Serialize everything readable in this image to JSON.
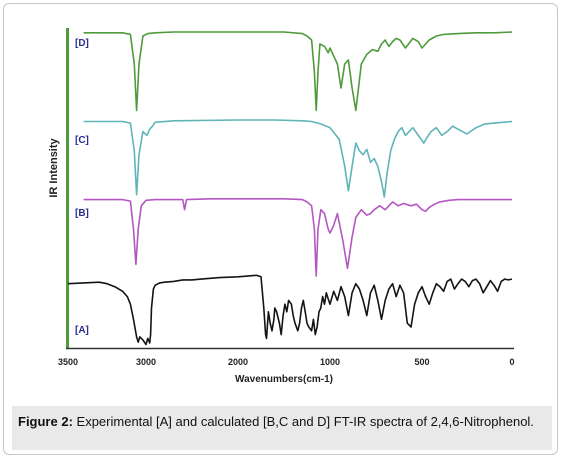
{
  "caption": {
    "label": "Figure 2:",
    "text": "Experimental [A] and calculated [B,C and D] FT-IR spectra of 2,4,6-Nitrophenol."
  },
  "chart_data": {
    "type": "line",
    "title": "",
    "xlabel": "Wavenumbers(cm-1)",
    "ylabel": "IR Intensity",
    "xlim": [
      3500,
      0
    ],
    "x_ticks": [
      3500,
      3000,
      2000,
      1000,
      500,
      0
    ],
    "tick_labels": [
      "3500",
      "3000",
      "2000",
      "1000",
      "500",
      "0"
    ],
    "grid": false,
    "series": [
      {
        "name": "[D]",
        "color": "#4f9a3c",
        "label_color": "#2b2f8f",
        "points": [
          [
            3400,
            0.99
          ],
          [
            3150,
            0.99
          ],
          [
            3100,
            0.97
          ],
          [
            3075,
            0.6
          ],
          [
            3060,
            0.02
          ],
          [
            3045,
            0.6
          ],
          [
            3020,
            0.95
          ],
          [
            2980,
            0.98
          ],
          [
            2900,
            0.99
          ],
          [
            2700,
            1.0
          ],
          [
            2000,
            1.0
          ],
          [
            1500,
            1.0
          ],
          [
            1300,
            0.98
          ],
          [
            1250,
            0.95
          ],
          [
            1200,
            0.9
          ],
          [
            1170,
            0.5
          ],
          [
            1150,
            0.02
          ],
          [
            1130,
            0.5
          ],
          [
            1110,
            0.85
          ],
          [
            1060,
            0.82
          ],
          [
            1020,
            0.74
          ],
          [
            1000,
            0.8
          ],
          [
            980,
            0.7
          ],
          [
            960,
            0.6
          ],
          [
            940,
            0.3
          ],
          [
            920,
            0.6
          ],
          [
            900,
            0.65
          ],
          [
            880,
            0.3
          ],
          [
            860,
            0.02
          ],
          [
            845,
            0.3
          ],
          [
            830,
            0.6
          ],
          [
            800,
            0.72
          ],
          [
            770,
            0.78
          ],
          [
            740,
            0.76
          ],
          [
            720,
            0.85
          ],
          [
            700,
            0.9
          ],
          [
            680,
            0.82
          ],
          [
            660,
            0.88
          ],
          [
            640,
            0.92
          ],
          [
            620,
            0.9
          ],
          [
            590,
            0.8
          ],
          [
            570,
            0.86
          ],
          [
            550,
            0.92
          ],
          [
            520,
            0.88
          ],
          [
            500,
            0.8
          ],
          [
            480,
            0.85
          ],
          [
            460,
            0.9
          ],
          [
            420,
            0.95
          ],
          [
            380,
            0.97
          ],
          [
            300,
            0.98
          ],
          [
            200,
            0.99
          ],
          [
            100,
            0.99
          ],
          [
            0,
            1.0
          ]
        ]
      },
      {
        "name": "[C]",
        "color": "#5fb4b8",
        "label_color": "#2b2f8f",
        "points": [
          [
            3400,
            0.98
          ],
          [
            3150,
            0.98
          ],
          [
            3100,
            0.96
          ],
          [
            3075,
            0.6
          ],
          [
            3060,
            0.03
          ],
          [
            3045,
            0.55
          ],
          [
            3020,
            0.85
          ],
          [
            2990,
            0.8
          ],
          [
            2960,
            0.88
          ],
          [
            2930,
            0.92
          ],
          [
            2900,
            0.97
          ],
          [
            2700,
            0.99
          ],
          [
            2000,
            1.0
          ],
          [
            1600,
            1.0
          ],
          [
            1300,
            0.99
          ],
          [
            1200,
            0.98
          ],
          [
            1100,
            0.95
          ],
          [
            1000,
            0.9
          ],
          [
            950,
            0.75
          ],
          [
            920,
            0.4
          ],
          [
            900,
            0.08
          ],
          [
            880,
            0.4
          ],
          [
            860,
            0.7
          ],
          [
            840,
            0.6
          ],
          [
            820,
            0.55
          ],
          [
            800,
            0.62
          ],
          [
            780,
            0.45
          ],
          [
            760,
            0.5
          ],
          [
            740,
            0.4
          ],
          [
            720,
            0.2
          ],
          [
            705,
            0.0
          ],
          [
            690,
            0.3
          ],
          [
            670,
            0.6
          ],
          [
            650,
            0.75
          ],
          [
            630,
            0.85
          ],
          [
            610,
            0.9
          ],
          [
            590,
            0.8
          ],
          [
            570,
            0.85
          ],
          [
            550,
            0.9
          ],
          [
            520,
            0.8
          ],
          [
            490,
            0.7
          ],
          [
            470,
            0.78
          ],
          [
            450,
            0.85
          ],
          [
            420,
            0.9
          ],
          [
            390,
            0.8
          ],
          [
            360,
            0.85
          ],
          [
            330,
            0.92
          ],
          [
            300,
            0.88
          ],
          [
            250,
            0.82
          ],
          [
            200,
            0.9
          ],
          [
            150,
            0.95
          ],
          [
            100,
            0.96
          ],
          [
            0,
            0.98
          ]
        ]
      },
      {
        "name": "[B]",
        "color": "#b557c2",
        "label_color": "#2b2f8f",
        "points": [
          [
            3400,
            0.98
          ],
          [
            3150,
            0.98
          ],
          [
            3100,
            0.96
          ],
          [
            3080,
            0.6
          ],
          [
            3065,
            0.15
          ],
          [
            3050,
            0.6
          ],
          [
            3030,
            0.9
          ],
          [
            3000,
            0.97
          ],
          [
            2900,
            0.98
          ],
          [
            2600,
            0.98
          ],
          [
            2580,
            0.85
          ],
          [
            2560,
            0.98
          ],
          [
            2300,
            0.99
          ],
          [
            1500,
            0.99
          ],
          [
            1300,
            0.98
          ],
          [
            1250,
            0.95
          ],
          [
            1200,
            0.9
          ],
          [
            1170,
            0.6
          ],
          [
            1150,
            0.0
          ],
          [
            1130,
            0.6
          ],
          [
            1100,
            0.85
          ],
          [
            1060,
            0.8
          ],
          [
            1020,
            0.6
          ],
          [
            1000,
            0.55
          ],
          [
            980,
            0.65
          ],
          [
            960,
            0.8
          ],
          [
            930,
            0.45
          ],
          [
            905,
            0.1
          ],
          [
            880,
            0.5
          ],
          [
            860,
            0.75
          ],
          [
            830,
            0.85
          ],
          [
            800,
            0.78
          ],
          [
            780,
            0.8
          ],
          [
            760,
            0.85
          ],
          [
            730,
            0.9
          ],
          [
            700,
            0.85
          ],
          [
            680,
            0.9
          ],
          [
            660,
            0.95
          ],
          [
            630,
            0.9
          ],
          [
            600,
            0.93
          ],
          [
            560,
            0.9
          ],
          [
            530,
            0.92
          ],
          [
            500,
            0.85
          ],
          [
            480,
            0.83
          ],
          [
            460,
            0.88
          ],
          [
            430,
            0.92
          ],
          [
            400,
            0.95
          ],
          [
            350,
            0.97
          ],
          [
            300,
            0.98
          ],
          [
            200,
            0.98
          ],
          [
            100,
            0.98
          ],
          [
            0,
            0.98
          ]
        ]
      },
      {
        "name": "[A]",
        "color": "#141414",
        "label_color": "#2b2f8f",
        "points": [
          [
            3500,
            0.82
          ],
          [
            3400,
            0.83
          ],
          [
            3300,
            0.84
          ],
          [
            3250,
            0.82
          ],
          [
            3200,
            0.78
          ],
          [
            3150,
            0.72
          ],
          [
            3120,
            0.65
          ],
          [
            3100,
            0.55
          ],
          [
            3080,
            0.35
          ],
          [
            3060,
            0.12
          ],
          [
            3050,
            0.05
          ],
          [
            3040,
            0.12
          ],
          [
            3020,
            0.08
          ],
          [
            3000,
            0.02
          ],
          [
            2980,
            0.1
          ],
          [
            2960,
            0.04
          ],
          [
            2950,
            0.15
          ],
          [
            2940,
            0.5
          ],
          [
            2920,
            0.75
          ],
          [
            2900,
            0.8
          ],
          [
            2850,
            0.83
          ],
          [
            2800,
            0.84
          ],
          [
            2700,
            0.85
          ],
          [
            2600,
            0.87
          ],
          [
            2500,
            0.87
          ],
          [
            2400,
            0.88
          ],
          [
            2200,
            0.9
          ],
          [
            2000,
            0.91
          ],
          [
            1900,
            0.92
          ],
          [
            1800,
            0.93
          ],
          [
            1750,
            0.91
          ],
          [
            1720,
            0.5
          ],
          [
            1700,
            0.15
          ],
          [
            1690,
            0.1
          ],
          [
            1670,
            0.45
          ],
          [
            1650,
            0.3
          ],
          [
            1630,
            0.2
          ],
          [
            1610,
            0.35
          ],
          [
            1600,
            0.5
          ],
          [
            1580,
            0.45
          ],
          [
            1550,
            0.3
          ],
          [
            1530,
            0.15
          ],
          [
            1510,
            0.4
          ],
          [
            1490,
            0.55
          ],
          [
            1470,
            0.45
          ],
          [
            1450,
            0.6
          ],
          [
            1420,
            0.55
          ],
          [
            1400,
            0.4
          ],
          [
            1380,
            0.3
          ],
          [
            1350,
            0.2
          ],
          [
            1330,
            0.3
          ],
          [
            1310,
            0.5
          ],
          [
            1290,
            0.6
          ],
          [
            1270,
            0.45
          ],
          [
            1250,
            0.3
          ],
          [
            1230,
            0.25
          ],
          [
            1200,
            0.2
          ],
          [
            1180,
            0.35
          ],
          [
            1160,
            0.15
          ],
          [
            1140,
            0.25
          ],
          [
            1120,
            0.45
          ],
          [
            1100,
            0.5
          ],
          [
            1080,
            0.65
          ],
          [
            1060,
            0.55
          ],
          [
            1040,
            0.7
          ],
          [
            1020,
            0.62
          ],
          [
            1000,
            0.55
          ],
          [
            980,
            0.72
          ],
          [
            960,
            0.6
          ],
          [
            940,
            0.78
          ],
          [
            920,
            0.65
          ],
          [
            900,
            0.4
          ],
          [
            880,
            0.7
          ],
          [
            860,
            0.82
          ],
          [
            840,
            0.75
          ],
          [
            820,
            0.6
          ],
          [
            800,
            0.4
          ],
          [
            780,
            0.7
          ],
          [
            760,
            0.8
          ],
          [
            740,
            0.6
          ],
          [
            720,
            0.35
          ],
          [
            700,
            0.6
          ],
          [
            680,
            0.75
          ],
          [
            660,
            0.82
          ],
          [
            640,
            0.65
          ],
          [
            620,
            0.8
          ],
          [
            600,
            0.7
          ],
          [
            580,
            0.3
          ],
          [
            560,
            0.25
          ],
          [
            540,
            0.55
          ],
          [
            520,
            0.7
          ],
          [
            500,
            0.78
          ],
          [
            480,
            0.65
          ],
          [
            460,
            0.55
          ],
          [
            440,
            0.7
          ],
          [
            420,
            0.82
          ],
          [
            400,
            0.78
          ],
          [
            380,
            0.72
          ],
          [
            360,
            0.85
          ],
          [
            340,
            0.88
          ],
          [
            320,
            0.75
          ],
          [
            300,
            0.82
          ],
          [
            280,
            0.88
          ],
          [
            260,
            0.85
          ],
          [
            240,
            0.78
          ],
          [
            220,
            0.86
          ],
          [
            200,
            0.88
          ],
          [
            180,
            0.82
          ],
          [
            160,
            0.7
          ],
          [
            140,
            0.78
          ],
          [
            120,
            0.86
          ],
          [
            100,
            0.8
          ],
          [
            80,
            0.72
          ],
          [
            60,
            0.85
          ],
          [
            40,
            0.88
          ],
          [
            20,
            0.87
          ],
          [
            0,
            0.88
          ]
        ]
      }
    ]
  }
}
